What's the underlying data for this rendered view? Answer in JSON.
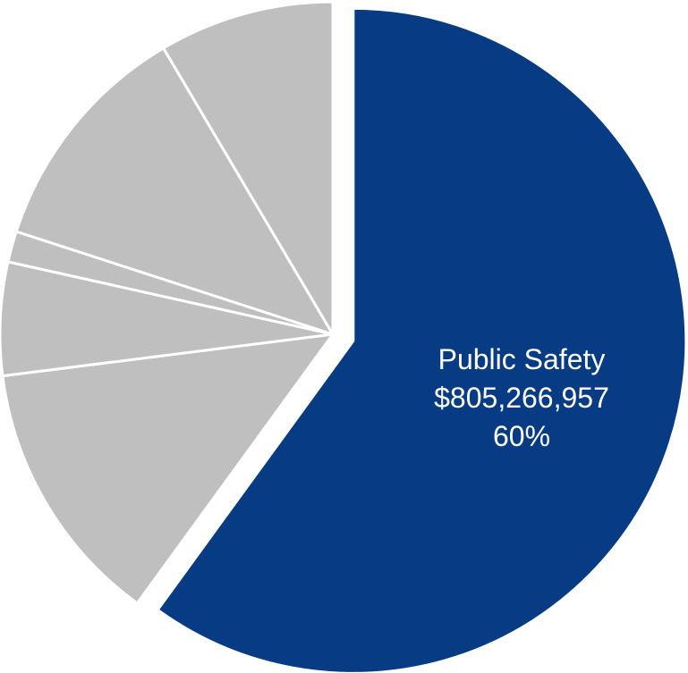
{
  "chart_data": {
    "type": "pie",
    "slices": [
      {
        "value": 60.0,
        "color": "#073c85",
        "exploded": true,
        "label": {
          "name": "Public Safety",
          "amount": "$805,266,957",
          "percent": "60%"
        }
      },
      {
        "value": 13.0,
        "color": "#bfbfbf"
      },
      {
        "value": 5.5,
        "color": "#bfbfbf"
      },
      {
        "value": 1.5,
        "color": "#bfbfbf"
      },
      {
        "value": 11.5,
        "color": "#bfbfbf"
      },
      {
        "value": 8.5,
        "color": "#bfbfbf"
      }
    ],
    "start": "12 o'clock",
    "direction": "clockwise",
    "divider_color": "#ffffff",
    "legend": "none"
  }
}
